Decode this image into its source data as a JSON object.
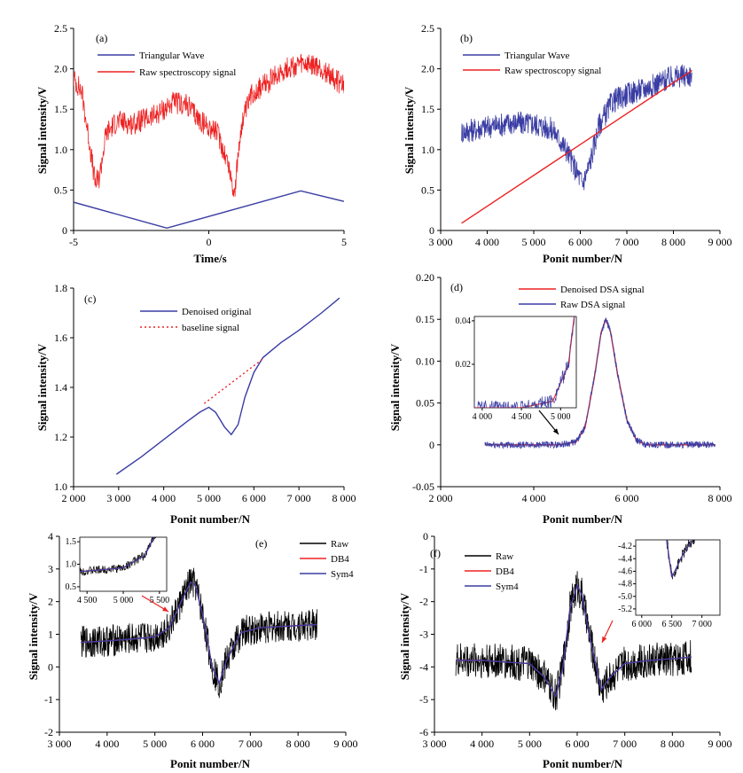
{
  "chart_data": [
    {
      "panel": "a",
      "type": "line",
      "xlabel": "Time/s",
      "ylabel": "Signal intensity/V",
      "xlim": [
        -5,
        5
      ],
      "ylim": [
        0,
        2.5
      ],
      "x_ticks": [
        "-5",
        "0",
        "5"
      ],
      "y_ticks": [
        "0",
        "0.5",
        "1.0",
        "1.5",
        "2.0",
        "2.5"
      ],
      "legend": "top-left",
      "series": [
        {
          "name": "Triangular Wave",
          "color": "#3a3da3",
          "x": [
            -5,
            -1.55,
            3.4,
            5
          ],
          "y": [
            0.35,
            0.03,
            0.49,
            0.36
          ]
        },
        {
          "name": "Raw spectroscopy signal",
          "color": "#ee2222",
          "noise": 0.14,
          "x": [
            -5,
            -4.7,
            -4.4,
            -4.2,
            -4.05,
            -3.8,
            -3.4,
            -2.8,
            -2.0,
            -1.3,
            -0.8,
            -0.3,
            0.3,
            0.7,
            0.95,
            1.2,
            1.6,
            2.2,
            2.8,
            3.4,
            4.0,
            4.5,
            5.0
          ],
          "y": [
            1.88,
            1.72,
            1.05,
            0.58,
            0.65,
            1.2,
            1.35,
            1.32,
            1.42,
            1.58,
            1.55,
            1.35,
            1.22,
            0.85,
            0.45,
            1.3,
            1.7,
            1.83,
            2.0,
            2.05,
            2.02,
            1.92,
            1.78
          ]
        }
      ]
    },
    {
      "panel": "b",
      "type": "line",
      "xlabel": "Ponit number/N",
      "ylabel": "Signal intensity/V",
      "xlim": [
        3000,
        9000
      ],
      "ylim": [
        0,
        2.5
      ],
      "x_ticks": [
        "3 000",
        "4 000",
        "5 000",
        "6 000",
        "7 000",
        "8 000",
        "9 000"
      ],
      "y_ticks": [
        "0",
        "0.5",
        "1.0",
        "1.5",
        "2.0",
        "2.5"
      ],
      "legend": "top-left",
      "series": [
        {
          "name": "Triangular Wave",
          "color": "#3a3da3",
          "noise": 0.15,
          "x": [
            3450,
            4000,
            4500,
            5000,
            5400,
            5700,
            5900,
            6050,
            6200,
            6400,
            6700,
            7000,
            7500,
            8000,
            8400
          ],
          "y": [
            1.22,
            1.28,
            1.33,
            1.32,
            1.25,
            1.0,
            0.75,
            0.58,
            0.82,
            1.3,
            1.6,
            1.68,
            1.78,
            1.9,
            1.92
          ]
        },
        {
          "name": "Raw spectroscopy signal",
          "color": "#ee2222",
          "x": [
            3450,
            8400
          ],
          "y": [
            0.09,
            1.98
          ]
        }
      ]
    },
    {
      "panel": "c",
      "type": "line",
      "xlabel": "Ponit number/N",
      "ylabel": "Signal intensity/V",
      "xlim": [
        2000,
        8000
      ],
      "ylim": [
        1.0,
        1.8
      ],
      "x_ticks": [
        "2 000",
        "3 000",
        "4 000",
        "5 000",
        "6 000",
        "7 000",
        "8 000"
      ],
      "y_ticks": [
        "1.0",
        "1.2",
        "1.4",
        "1.6",
        "1.8"
      ],
      "legend": "top-left",
      "series": [
        {
          "name": "Denoised original",
          "color": "#3a3da3",
          "x": [
            2950,
            3500,
            4000,
            4500,
            4800,
            5000,
            5150,
            5350,
            5500,
            5650,
            5800,
            6000,
            6200,
            6600,
            7000,
            7500,
            7900
          ],
          "y": [
            1.05,
            1.12,
            1.19,
            1.26,
            1.3,
            1.32,
            1.3,
            1.24,
            1.21,
            1.25,
            1.36,
            1.46,
            1.52,
            1.58,
            1.63,
            1.7,
            1.76
          ]
        },
        {
          "name": "baseline signal",
          "color": "#ee2222",
          "dashed": true,
          "x": [
            4900,
            6200
          ],
          "y": [
            1.335,
            1.515
          ]
        }
      ]
    },
    {
      "panel": "d",
      "type": "line",
      "xlabel": "Ponit number/N",
      "ylabel": "Signal intensity/V",
      "xlim": [
        2000,
        8000
      ],
      "ylim": [
        -0.05,
        0.2
      ],
      "x_ticks": [
        "2 000",
        "4 000",
        "6 000",
        "8 000"
      ],
      "y_ticks": [
        "-0.05",
        "0",
        "0.05",
        "0.10",
        "0.15",
        "0.20"
      ],
      "legend": "top-left",
      "series": [
        {
          "name": "Denoised DSA signal",
          "color": "#ee2222",
          "x": [
            2950,
            4500,
            4900,
            5100,
            5300,
            5450,
            5550,
            5650,
            5800,
            6000,
            6200,
            6400,
            7900
          ],
          "y": [
            0,
            0,
            0.003,
            0.02,
            0.08,
            0.135,
            0.15,
            0.135,
            0.085,
            0.03,
            0.006,
            0,
            0
          ]
        },
        {
          "name": "Raw DSA signal",
          "color": "#3a3da3",
          "noise": 0.004,
          "x": [
            2950,
            4500,
            4900,
            5100,
            5300,
            5450,
            5550,
            5650,
            5800,
            6000,
            6200,
            6400,
            7900
          ],
          "y": [
            0,
            0,
            0.003,
            0.02,
            0.08,
            0.135,
            0.15,
            0.135,
            0.085,
            0.03,
            0.006,
            0,
            0
          ]
        }
      ],
      "inset": {
        "xlim": [
          3900,
          5200
        ],
        "ylim": [
          0,
          0.042
        ],
        "x_ticks": [
          "4 000",
          "4 500",
          "5 000"
        ],
        "y_ticks": [
          "0.02",
          "0.04"
        ]
      }
    },
    {
      "panel": "e",
      "type": "line",
      "xlabel": "Ponit number/N",
      "ylabel": "Signal intensity/V",
      "xlim": [
        3000,
        9000
      ],
      "ylim": [
        -2,
        4
      ],
      "x_ticks": [
        "3 000",
        "4 000",
        "5 000",
        "6 000",
        "7 000",
        "8 000",
        "9 000"
      ],
      "y_ticks": [
        "-2",
        "-1",
        "0",
        "1",
        "2",
        "3",
        "4"
      ],
      "legend": "top-right",
      "series": [
        {
          "name": "Raw",
          "color": "#000000",
          "noise": 0.5,
          "x": [
            3450,
            4000,
            4500,
            5000,
            5300,
            5550,
            5750,
            5850,
            6000,
            6200,
            6350,
            6500,
            6800,
            7200,
            7800,
            8400
          ],
          "y": [
            0.75,
            0.8,
            0.85,
            0.92,
            1.2,
            2.0,
            2.6,
            2.5,
            1.6,
            0.0,
            -0.5,
            0.2,
            1.05,
            1.2,
            1.25,
            1.3
          ]
        },
        {
          "name": "DB4",
          "color": "#ee2222",
          "x": [
            3450,
            4000,
            4500,
            5000,
            5300,
            5550,
            5750,
            5850,
            6000,
            6200,
            6350,
            6500,
            6800,
            7200,
            7800,
            8400
          ],
          "y": [
            0.75,
            0.8,
            0.85,
            0.92,
            1.2,
            2.0,
            2.6,
            2.5,
            1.6,
            0.0,
            -0.5,
            0.2,
            1.05,
            1.2,
            1.25,
            1.3
          ]
        },
        {
          "name": "Sym4",
          "color": "#3a3da3",
          "x": [
            3450,
            4000,
            4500,
            5000,
            5300,
            5550,
            5750,
            5850,
            6000,
            6200,
            6350,
            6500,
            6800,
            7200,
            7800,
            8400
          ],
          "y": [
            0.75,
            0.8,
            0.85,
            0.92,
            1.2,
            2.0,
            2.6,
            2.5,
            1.6,
            0.0,
            -0.5,
            0.2,
            1.05,
            1.2,
            1.25,
            1.3
          ]
        }
      ],
      "inset": {
        "xlim": [
          4400,
          5600
        ],
        "ylim": [
          0.4,
          1.6
        ],
        "x_ticks": [
          "4 500",
          "5 000",
          "5 500"
        ],
        "y_ticks": [
          "0.5",
          "1.0",
          "1.5"
        ]
      }
    },
    {
      "panel": "f",
      "type": "line",
      "xlabel": "Ponit number/N",
      "ylabel": "Signal intensity/V",
      "xlim": [
        3000,
        9000
      ],
      "ylim": [
        -6,
        0
      ],
      "x_ticks": [
        "3 000",
        "4 000",
        "5 000",
        "6 000",
        "7 000",
        "8 000",
        "9 000"
      ],
      "y_ticks": [
        "-6",
        "-5",
        "-4",
        "-3",
        "-2",
        "-1",
        "0"
      ],
      "legend": "top-left",
      "series": [
        {
          "name": "Raw",
          "color": "#000000",
          "noise": 0.55,
          "x": [
            3450,
            4000,
            4500,
            5000,
            5300,
            5550,
            5700,
            5850,
            6000,
            6100,
            6250,
            6400,
            6500,
            6700,
            7000,
            7500,
            8000,
            8400
          ],
          "y": [
            -3.8,
            -3.8,
            -3.85,
            -3.9,
            -4.3,
            -4.9,
            -4.0,
            -2.2,
            -1.5,
            -1.8,
            -3.0,
            -4.0,
            -4.7,
            -4.3,
            -3.9,
            -3.8,
            -3.75,
            -3.7
          ]
        },
        {
          "name": "DB4",
          "color": "#ee2222",
          "x": [
            3450,
            4000,
            4500,
            5000,
            5300,
            5550,
            5700,
            5850,
            6000,
            6100,
            6250,
            6400,
            6500,
            6700,
            7000,
            7500,
            8000,
            8400
          ],
          "y": [
            -3.8,
            -3.8,
            -3.85,
            -3.9,
            -4.3,
            -4.9,
            -4.0,
            -2.2,
            -1.5,
            -1.8,
            -3.0,
            -4.0,
            -4.7,
            -4.3,
            -3.9,
            -3.8,
            -3.75,
            -3.7
          ]
        },
        {
          "name": "Sym4",
          "color": "#3a3da3",
          "x": [
            3450,
            4000,
            4500,
            5000,
            5300,
            5550,
            5700,
            5850,
            6000,
            6100,
            6250,
            6400,
            6500,
            6700,
            7000,
            7500,
            8000,
            8400
          ],
          "y": [
            -3.8,
            -3.8,
            -3.85,
            -3.9,
            -4.3,
            -4.9,
            -4.0,
            -2.2,
            -1.5,
            -1.8,
            -3.0,
            -4.0,
            -4.7,
            -4.3,
            -3.9,
            -3.8,
            -3.75,
            -3.7
          ]
        }
      ],
      "inset": {
        "xlim": [
          5900,
          7300
        ],
        "ylim": [
          -5.3,
          -4.1
        ],
        "x_ticks": [
          "6 000",
          "6 500",
          "7 000"
        ],
        "y_ticks": [
          "-4.2",
          "-4.4",
          "-4.6",
          "-4.8",
          "-5.0",
          "-5.2"
        ]
      }
    }
  ]
}
